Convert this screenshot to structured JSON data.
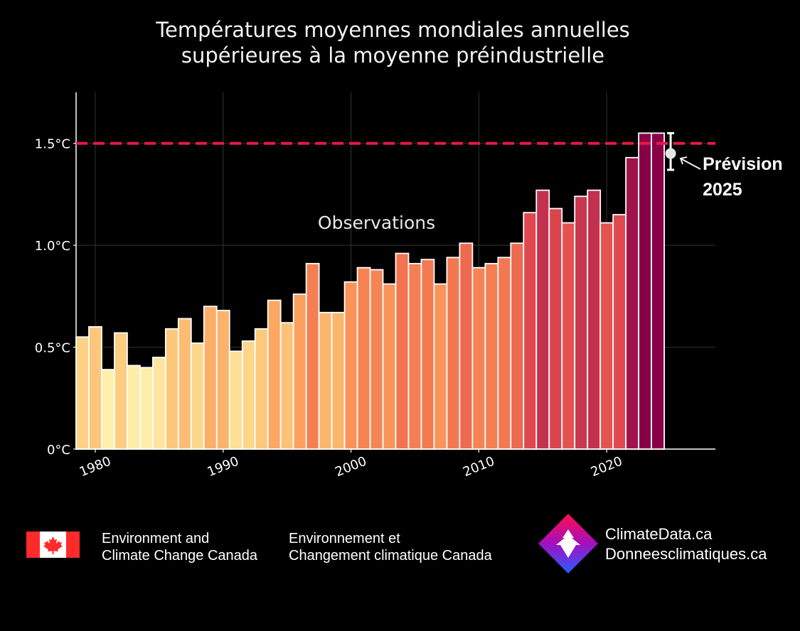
{
  "header": {
    "title_line1": "Températures moyennes mondiales annuelles",
    "title_line2": "supérieures à la moyenne préindustrielle"
  },
  "chart_data": {
    "type": "bar",
    "title": "Températures moyennes mondiales annuelles supérieures à la moyenne préindustrielle",
    "xlabel": "",
    "ylabel": "",
    "x": [
      1979,
      1980,
      1981,
      1982,
      1983,
      1984,
      1985,
      1986,
      1987,
      1988,
      1989,
      1990,
      1991,
      1992,
      1993,
      1994,
      1995,
      1996,
      1997,
      1998,
      1999,
      2000,
      2001,
      2002,
      2003,
      2004,
      2005,
      2006,
      2007,
      2008,
      2009,
      2010,
      2011,
      2012,
      2013,
      2014,
      2015,
      2016,
      2017,
      2018,
      2019,
      2020,
      2021,
      2022,
      2023,
      2024
    ],
    "values": [
      0.55,
      0.6,
      0.39,
      0.57,
      0.41,
      0.4,
      0.45,
      0.59,
      0.64,
      0.52,
      0.7,
      0.68,
      0.48,
      0.53,
      0.59,
      0.73,
      0.62,
      0.76,
      0.91,
      0.67,
      0.67,
      0.82,
      0.89,
      0.88,
      0.81,
      0.96,
      0.91,
      0.93,
      0.81,
      0.94,
      1.01,
      0.89,
      0.91,
      0.94,
      1.01,
      1.16,
      1.27,
      1.18,
      1.11,
      1.24,
      1.27,
      1.11,
      1.15,
      1.43,
      1.55,
      1.55
    ],
    "ylim": [
      0,
      1.75
    ],
    "xlim": [
      1978.5,
      2028.5
    ],
    "yticks": [
      0,
      0.5,
      1.0,
      1.5
    ],
    "ytick_labels": [
      "0°C",
      "0.5°C",
      "1.0°C",
      "1.5°C"
    ],
    "xticks": [
      1980,
      1990,
      2000,
      2010,
      2020
    ],
    "xtick_labels": [
      "1980",
      "1990",
      "2000",
      "2010",
      "2020"
    ],
    "grid": true,
    "threshold": {
      "value": 1.5,
      "color": "#e8174a",
      "style": "dashed"
    },
    "forecast": {
      "year": 2025,
      "value": 1.45,
      "low": 1.37,
      "high": 1.55,
      "label_line1": "Prévision",
      "label_line2": "2025"
    },
    "annotation": "Observations",
    "colormap": [
      "#fff7b8",
      "#fdd284",
      "#fca25e",
      "#f37650",
      "#e04a4f",
      "#b0204e",
      "#8a0046"
    ]
  },
  "footer": {
    "ec_en_line1": "Environment and",
    "ec_en_line2": "Climate Change Canada",
    "ec_fr_line1": "Environnement et",
    "ec_fr_line2": "Changement climatique Canada",
    "brand_line1": "ClimateData.ca",
    "brand_line2": "Donneesclimatiques.ca"
  },
  "colors": {
    "background": "#000000",
    "threshold": "#e8174a",
    "flag_red": "#ff2a2a"
  }
}
